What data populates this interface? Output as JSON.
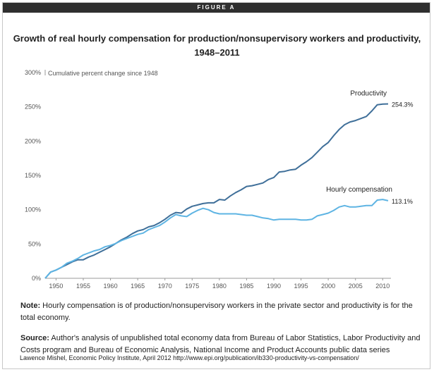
{
  "figure_label": "FIGURE A",
  "note": {
    "label": "Note:",
    "text": "Hourly compensation is of production/nonsupervisory workers in the private sector and productivity is for the total economy."
  },
  "source": {
    "label": "Source:",
    "text": "Author's analysis of unpublished total economy data from Bureau of Labor Statistics, Labor Productivity and Costs program and Bureau of Economic Analysis, National Income and Product Accounts public data series"
  },
  "credit": "Lawence Mishel, Economic Policy Institute, April 2012 http://www.epi.org/publication/ib330-productivity-vs-compensation/",
  "colors": {
    "productivity": "#3f6f99",
    "compensation": "#5eb4e3",
    "axis": "#999999",
    "text": "#222222"
  },
  "chart_data": {
    "type": "line",
    "title": "Growth of real hourly compensation for production/nonsupervisory workers and productivity, 1948–2011",
    "ylabel": "Cumulative percent change since 1948",
    "xlabel": "",
    "xlim": [
      1948,
      2011
    ],
    "ylim": [
      0,
      300
    ],
    "x_ticks": [
      1950,
      1955,
      1960,
      1965,
      1970,
      1975,
      1980,
      1985,
      1990,
      1995,
      2000,
      2005,
      2010
    ],
    "y_ticks": [
      0,
      50,
      100,
      150,
      200,
      250,
      300
    ],
    "y_tick_labels": [
      "0%",
      "50%",
      "100%",
      "150%",
      "200%",
      "250%",
      "300%"
    ],
    "grid": false,
    "series": [
      {
        "name": "Productivity",
        "end_label": "254.3%",
        "x": [
          1948,
          1949,
          1950,
          1951,
          1952,
          1953,
          1954,
          1955,
          1956,
          1957,
          1958,
          1959,
          1960,
          1961,
          1962,
          1963,
          1964,
          1965,
          1966,
          1967,
          1968,
          1969,
          1970,
          1971,
          1972,
          1973,
          1974,
          1975,
          1976,
          1977,
          1978,
          1979,
          1980,
          1981,
          1982,
          1983,
          1984,
          1985,
          1986,
          1987,
          1988,
          1989,
          1990,
          1991,
          1992,
          1993,
          1994,
          1995,
          1996,
          1997,
          1998,
          1999,
          2000,
          2001,
          2002,
          2003,
          2004,
          2005,
          2006,
          2007,
          2008,
          2009,
          2010,
          2011
        ],
        "values": [
          0,
          9,
          12,
          16,
          20,
          24,
          27,
          27,
          31,
          34,
          38,
          42,
          46,
          51,
          56,
          60,
          65,
          69,
          71,
          75,
          77,
          81,
          86,
          92,
          96,
          95,
          101,
          105,
          107,
          109,
          110,
          110,
          115,
          114,
          120,
          125,
          129,
          134,
          135,
          137,
          139,
          144,
          147,
          155,
          156,
          158,
          159,
          165,
          170,
          176,
          184,
          192,
          198,
          208,
          217,
          224,
          228,
          230,
          233,
          236,
          244,
          253,
          254,
          254.3
        ]
      },
      {
        "name": "Hourly compensation",
        "end_label": "113.1%",
        "x": [
          1948,
          1949,
          1950,
          1951,
          1952,
          1953,
          1954,
          1955,
          1956,
          1957,
          1958,
          1959,
          1960,
          1961,
          1962,
          1963,
          1964,
          1965,
          1966,
          1967,
          1968,
          1969,
          1970,
          1971,
          1972,
          1973,
          1974,
          1975,
          1976,
          1977,
          1978,
          1979,
          1980,
          1981,
          1982,
          1983,
          1984,
          1985,
          1986,
          1987,
          1988,
          1989,
          1990,
          1991,
          1992,
          1993,
          1994,
          1995,
          1996,
          1997,
          1998,
          1999,
          2000,
          2001,
          2002,
          2003,
          2004,
          2005,
          2006,
          2007,
          2008,
          2009,
          2010,
          2011
        ],
        "values": [
          0,
          9,
          12,
          16,
          22,
          25,
          29,
          34,
          37,
          40,
          42,
          46,
          48,
          51,
          55,
          58,
          61,
          64,
          66,
          71,
          74,
          77,
          82,
          88,
          93,
          91,
          90,
          95,
          99,
          102,
          100,
          96,
          94,
          94,
          94,
          94,
          93,
          92,
          92,
          90,
          88,
          87,
          85,
          86,
          86,
          86,
          86,
          85,
          85,
          86,
          91,
          93,
          95,
          99,
          104,
          106,
          104,
          104,
          105,
          106,
          106,
          114,
          115,
          113.1
        ]
      }
    ]
  }
}
